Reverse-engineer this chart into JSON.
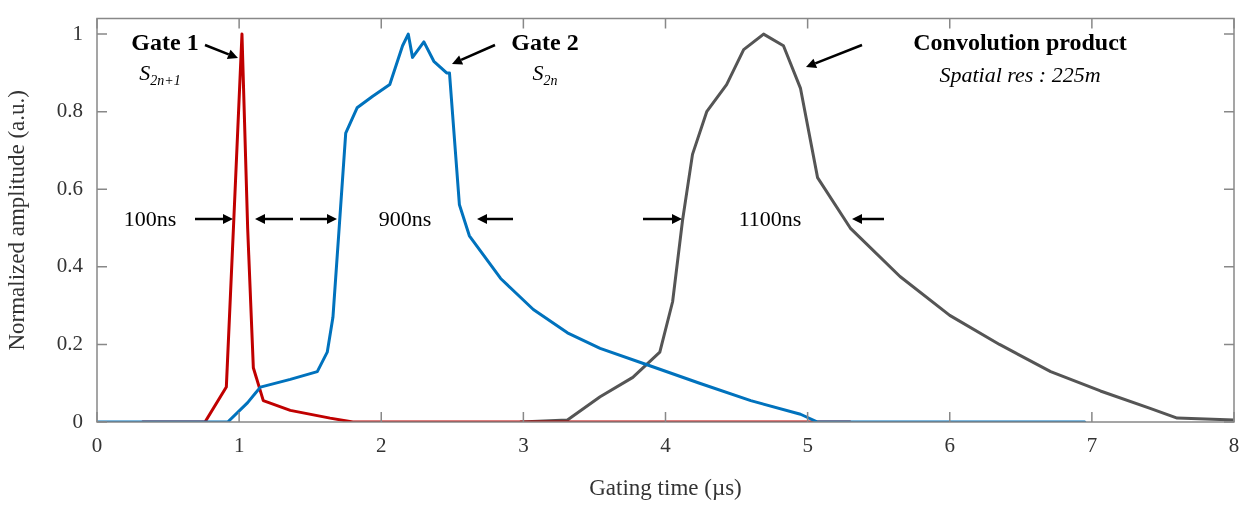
{
  "chart_data": {
    "type": "line",
    "xlabel": "Gating time (µs)",
    "ylabel": "Normalized amplitude (a.u.)",
    "xlim": [
      0,
      8
    ],
    "xticks": [
      0,
      1,
      2,
      3,
      4,
      5,
      6,
      7,
      8
    ],
    "ylim": [
      0,
      1.04
    ],
    "yticks": [
      0,
      0.2,
      0.4,
      0.6,
      0.8,
      1
    ],
    "line_style": "solid",
    "marker": "none",
    "legend": false,
    "series": [
      {
        "color": "#0072bd",
        "x": [
          0,
          0.92,
          1.06,
          1.15,
          1.36,
          1.55,
          1.62,
          1.66,
          1.7,
          1.75,
          1.83,
          1.94,
          2.06,
          2.15,
          2.19,
          2.22,
          2.3,
          2.37,
          2.46,
          2.48,
          2.55,
          2.62,
          2.84,
          3.07,
          3.31,
          3.54,
          3.89,
          4.24,
          4.6,
          4.95,
          5.07,
          6.95
        ],
        "values": [
          0,
          0,
          0.05,
          0.09,
          0.11,
          0.13,
          0.18,
          0.27,
          0.48,
          0.745,
          0.81,
          0.84,
          0.87,
          0.97,
          1.0,
          0.94,
          0.98,
          0.93,
          0.9,
          0.9,
          0.56,
          0.48,
          0.37,
          0.29,
          0.23,
          0.19,
          0.145,
          0.1,
          0.055,
          0.02,
          0,
          0
        ]
      },
      {
        "color": "#c00000",
        "x": [
          0.32,
          0.76,
          0.91,
          0.96,
          1.02,
          1.06,
          1.1,
          1.17,
          1.36,
          1.64,
          1.8,
          5.3
        ],
        "values": [
          0,
          0,
          0.09,
          0.5,
          1.0,
          0.5,
          0.14,
          0.055,
          0.03,
          0.01,
          0,
          0
        ]
      },
      {
        "color": "#555555",
        "x": [
          2.98,
          3.31,
          3.54,
          3.77,
          3.96,
          4.05,
          4.12,
          4.19,
          4.29,
          4.43,
          4.55,
          4.69,
          4.83,
          4.95,
          5.07,
          5.3,
          5.65,
          6.0,
          6.35,
          6.71,
          7.06,
          7.41,
          7.6,
          8.0
        ],
        "values": [
          0,
          0.005,
          0.065,
          0.115,
          0.18,
          0.31,
          0.52,
          0.69,
          0.8,
          0.87,
          0.96,
          1.0,
          0.97,
          0.86,
          0.63,
          0.5,
          0.375,
          0.275,
          0.2,
          0.13,
          0.08,
          0.035,
          0.01,
          0.005
        ]
      }
    ],
    "annotations": [
      "Gate 1",
      "S$_{2n+1}$",
      "Gate 2",
      "S$_{2n}$",
      "Convolution product",
      "Spatial res : 225m",
      "100ns",
      "900ns",
      "1100ns"
    ]
  }
}
